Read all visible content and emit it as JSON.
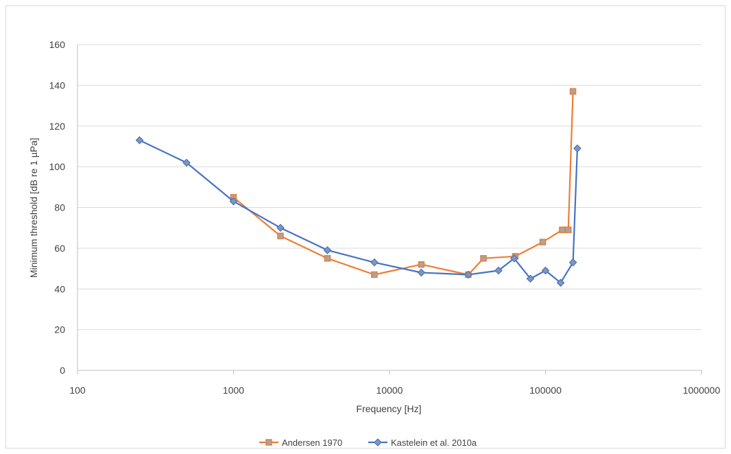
{
  "chart_data": {
    "type": "line",
    "xlabel": "Frequency [Hz]",
    "ylabel": "Minimum threshold [dB re 1 µPa]",
    "xscale": "log",
    "xlim": [
      100,
      1000000
    ],
    "ylim": [
      0,
      160
    ],
    "xticks": [
      100,
      1000,
      10000,
      100000,
      1000000
    ],
    "xtick_labels": [
      "100",
      "1000",
      "10000",
      "100000",
      "1000000"
    ],
    "yticks": [
      0,
      20,
      40,
      60,
      80,
      100,
      120,
      140,
      160
    ],
    "ytick_labels": [
      "0",
      "20",
      "40",
      "60",
      "80",
      "100",
      "120",
      "140",
      "160"
    ],
    "grid": "horizontal",
    "legend_position": "bottom",
    "series": [
      {
        "name": "Andersen 1970",
        "color": "#ed7d31",
        "marker": "square",
        "marker_color": "#a5a5a5",
        "x": [
          1000,
          2000,
          4000,
          8000,
          16000,
          32000,
          40000,
          64000,
          96000,
          128000,
          140000,
          150000
        ],
        "y": [
          85,
          66,
          55,
          47,
          52,
          47,
          55,
          56,
          63,
          69,
          69,
          137
        ]
      },
      {
        "name": "Kastelein et al. 2010a",
        "color": "#4472c4",
        "marker": "diamond",
        "marker_color": "#8497b0",
        "x": [
          250,
          500,
          1000,
          2000,
          4000,
          8000,
          16000,
          32000,
          50000,
          63000,
          80000,
          100000,
          125000,
          150000,
          160000
        ],
        "y": [
          113,
          102,
          83,
          70,
          59,
          53,
          48,
          47,
          49,
          55,
          45,
          49,
          43,
          53,
          109
        ]
      }
    ]
  }
}
